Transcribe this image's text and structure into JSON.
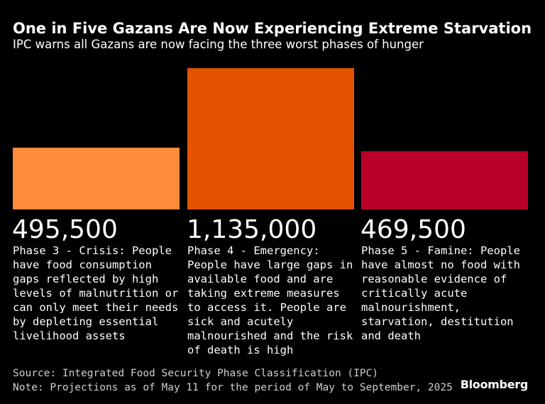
{
  "header": {
    "title": "One in Five Gazans Are Now Experiencing Extreme Starvation",
    "subtitle": "IPC warns all Gazans are now facing the three worst phases of hunger"
  },
  "chart_data": {
    "type": "bar",
    "title": "One in Five Gazans Are Now Experiencing Extreme Starvation",
    "subtitle": "IPC warns all Gazans are now facing the three worst phases of hunger",
    "categories": [
      "Phase 3 - Crisis: People have food consumption gaps reflected by high levels of malnutrition or can only meet their needs by depleting essential livelihood assets",
      "Phase 4 - Emergency: People have large gaps in available food and are taking extreme measures to access it. People are sick and acutely malnourished and the risk of death is high",
      "Phase 5 - Famine: People have almost no food with reasonable evidence of critically acute malnourishment, starvation, destitution and death"
    ],
    "values": [
      495500,
      1135000,
      469500
    ],
    "value_labels": [
      "495,500",
      "1,135,000",
      "469,500"
    ],
    "colors": [
      "#FF8C3A",
      "#E35300",
      "#B8002A"
    ],
    "xlabel": "",
    "ylabel": "",
    "ylim": [
      0,
      1135000
    ],
    "grid": false,
    "legend": "none"
  },
  "footer": {
    "source": "Source: Integrated Food Security Phase Classification (IPC)",
    "note": "Note: Projections as of May 11 for the period of May to September, 2025"
  },
  "branding": {
    "logo_text": "Bloomberg"
  }
}
